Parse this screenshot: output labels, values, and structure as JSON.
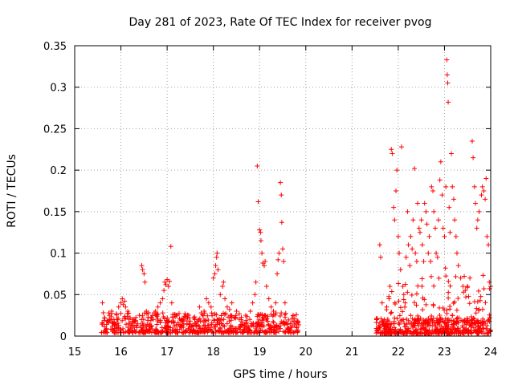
{
  "chart_data": {
    "type": "scatter",
    "title": "Day 281 of 2023, Rate Of TEC Index for receiver pvog",
    "xlabel": "GPS time / hours",
    "ylabel": "ROTI / TECUs",
    "xlim": [
      15,
      24
    ],
    "ylim": [
      0,
      0.35
    ],
    "xticks": [
      15,
      16,
      17,
      18,
      19,
      20,
      21,
      22,
      23,
      24
    ],
    "yticks": [
      0,
      0.05,
      0.1,
      0.15,
      0.2,
      0.25,
      0.3,
      0.35
    ],
    "xtick_labels": [
      "15",
      "16",
      "17",
      "18",
      "19",
      "20",
      "21",
      "22",
      "23",
      "24"
    ],
    "ytick_labels": [
      "0",
      "0.05",
      "0.1",
      "0.15",
      "0.2",
      "0.25",
      "0.3",
      "0.35"
    ],
    "grid": true,
    "marker": "+",
    "color": "#ff0000",
    "series": [
      {
        "name": "ROTI",
        "points": [
          [
            15.6,
            0.04
          ],
          [
            15.62,
            0.028
          ],
          [
            15.65,
            0.022
          ],
          [
            15.7,
            0.018
          ],
          [
            15.75,
            0.025
          ],
          [
            15.8,
            0.03
          ],
          [
            15.85,
            0.02
          ],
          [
            15.9,
            0.027
          ],
          [
            15.95,
            0.035
          ],
          [
            16.0,
            0.04
          ],
          [
            16.03,
            0.045
          ],
          [
            16.05,
            0.038
          ],
          [
            16.08,
            0.042
          ],
          [
            16.1,
            0.035
          ],
          [
            16.15,
            0.03
          ],
          [
            16.2,
            0.022
          ],
          [
            16.3,
            0.018
          ],
          [
            16.4,
            0.025
          ],
          [
            16.45,
            0.085
          ],
          [
            16.47,
            0.08
          ],
          [
            16.5,
            0.075
          ],
          [
            16.52,
            0.065
          ],
          [
            16.55,
            0.03
          ],
          [
            16.6,
            0.028
          ],
          [
            16.65,
            0.022
          ],
          [
            16.7,
            0.02
          ],
          [
            16.75,
            0.03
          ],
          [
            16.8,
            0.035
          ],
          [
            16.85,
            0.04
          ],
          [
            16.9,
            0.045
          ],
          [
            16.93,
            0.055
          ],
          [
            16.95,
            0.065
          ],
          [
            16.97,
            0.062
          ],
          [
            17.0,
            0.068
          ],
          [
            17.03,
            0.06
          ],
          [
            17.05,
            0.066
          ],
          [
            17.08,
            0.108
          ],
          [
            17.1,
            0.04
          ],
          [
            17.2,
            0.025
          ],
          [
            17.3,
            0.02
          ],
          [
            17.4,
            0.022
          ],
          [
            17.5,
            0.018
          ],
          [
            17.6,
            0.02
          ],
          [
            17.7,
            0.035
          ],
          [
            17.8,
            0.03
          ],
          [
            17.85,
            0.045
          ],
          [
            17.9,
            0.04
          ],
          [
            17.95,
            0.035
          ],
          [
            18.0,
            0.07
          ],
          [
            18.03,
            0.075
          ],
          [
            18.05,
            0.085
          ],
          [
            18.07,
            0.095
          ],
          [
            18.08,
            0.1
          ],
          [
            18.1,
            0.08
          ],
          [
            18.15,
            0.05
          ],
          [
            18.2,
            0.06
          ],
          [
            18.22,
            0.065
          ],
          [
            18.25,
            0.045
          ],
          [
            18.3,
            0.035
          ],
          [
            18.35,
            0.032
          ],
          [
            18.4,
            0.04
          ],
          [
            18.5,
            0.03
          ],
          [
            18.6,
            0.02
          ],
          [
            18.7,
            0.025
          ],
          [
            18.8,
            0.03
          ],
          [
            18.85,
            0.04
          ],
          [
            18.9,
            0.05
          ],
          [
            18.92,
            0.065
          ],
          [
            18.95,
            0.205
          ],
          [
            18.97,
            0.162
          ],
          [
            19.0,
            0.128
          ],
          [
            19.02,
            0.125
          ],
          [
            19.03,
            0.115
          ],
          [
            19.05,
            0.1
          ],
          [
            19.07,
            0.088
          ],
          [
            19.1,
            0.085
          ],
          [
            19.12,
            0.09
          ],
          [
            19.15,
            0.06
          ],
          [
            19.2,
            0.045
          ],
          [
            19.25,
            0.035
          ],
          [
            19.3,
            0.03
          ],
          [
            19.35,
            0.04
          ],
          [
            19.38,
            0.075
          ],
          [
            19.4,
            0.092
          ],
          [
            19.42,
            0.1
          ],
          [
            19.45,
            0.185
          ],
          [
            19.47,
            0.17
          ],
          [
            19.48,
            0.137
          ],
          [
            19.5,
            0.105
          ],
          [
            19.52,
            0.09
          ],
          [
            19.55,
            0.04
          ],
          [
            19.6,
            0.015
          ],
          [
            19.7,
            0.012
          ],
          [
            19.8,
            0.01
          ],
          [
            21.6,
            0.11
          ],
          [
            21.62,
            0.095
          ],
          [
            21.65,
            0.04
          ],
          [
            21.7,
            0.02
          ],
          [
            21.75,
            0.035
          ],
          [
            21.8,
            0.045
          ],
          [
            21.82,
            0.06
          ],
          [
            21.85,
            0.225
          ],
          [
            21.87,
            0.22
          ],
          [
            21.9,
            0.155
          ],
          [
            21.92,
            0.14
          ],
          [
            21.95,
            0.175
          ],
          [
            21.97,
            0.2
          ],
          [
            22.0,
            0.12
          ],
          [
            22.02,
            0.1
          ],
          [
            22.05,
            0.08
          ],
          [
            22.07,
            0.228
          ],
          [
            22.1,
            0.06
          ],
          [
            22.12,
            0.05
          ],
          [
            22.15,
            0.04
          ],
          [
            22.17,
            0.095
          ],
          [
            22.2,
            0.15
          ],
          [
            22.22,
            0.11
          ],
          [
            22.25,
            0.085
          ],
          [
            22.27,
            0.12
          ],
          [
            22.3,
            0.105
          ],
          [
            22.32,
            0.14
          ],
          [
            22.35,
            0.202
          ],
          [
            22.37,
            0.1
          ],
          [
            22.4,
            0.09
          ],
          [
            22.42,
            0.16
          ],
          [
            22.45,
            0.13
          ],
          [
            22.47,
            0.125
          ],
          [
            22.5,
            0.14
          ],
          [
            22.52,
            0.11
          ],
          [
            22.55,
            0.09
          ],
          [
            22.57,
            0.16
          ],
          [
            22.6,
            0.15
          ],
          [
            22.62,
            0.135
          ],
          [
            22.65,
            0.1
          ],
          [
            22.67,
            0.12
          ],
          [
            22.7,
            0.09
          ],
          [
            22.72,
            0.18
          ],
          [
            22.75,
            0.175
          ],
          [
            22.77,
            0.15
          ],
          [
            22.8,
            0.13
          ],
          [
            22.82,
            0.1
          ],
          [
            22.85,
            0.095
          ],
          [
            22.87,
            0.14
          ],
          [
            22.9,
            0.188
          ],
          [
            22.92,
            0.21
          ],
          [
            22.95,
            0.17
          ],
          [
            22.97,
            0.13
          ],
          [
            23.0,
            0.12
          ],
          [
            23.02,
            0.082
          ],
          [
            23.03,
            0.18
          ],
          [
            23.05,
            0.333
          ],
          [
            23.06,
            0.315
          ],
          [
            23.07,
            0.305
          ],
          [
            23.08,
            0.282
          ],
          [
            23.1,
            0.155
          ],
          [
            23.12,
            0.125
          ],
          [
            23.15,
            0.22
          ],
          [
            23.17,
            0.18
          ],
          [
            23.2,
            0.165
          ],
          [
            23.22,
            0.14
          ],
          [
            23.25,
            0.12
          ],
          [
            23.27,
            0.1
          ],
          [
            23.3,
            0.085
          ],
          [
            23.35,
            0.07
          ],
          [
            23.4,
            0.06
          ],
          [
            23.45,
            0.055
          ],
          [
            23.5,
            0.06
          ],
          [
            23.55,
            0.07
          ],
          [
            23.6,
            0.235
          ],
          [
            23.62,
            0.215
          ],
          [
            23.65,
            0.18
          ],
          [
            23.67,
            0.16
          ],
          [
            23.7,
            0.13
          ],
          [
            23.72,
            0.14
          ],
          [
            23.75,
            0.15
          ],
          [
            23.8,
            0.17
          ],
          [
            23.82,
            0.18
          ],
          [
            23.85,
            0.175
          ],
          [
            23.88,
            0.165
          ],
          [
            23.9,
            0.19
          ],
          [
            23.92,
            0.12
          ],
          [
            23.95,
            0.11
          ],
          [
            23.97,
            0.065
          ],
          [
            24.0,
            0.06
          ]
        ]
      }
    ],
    "band_clusters": [
      {
        "x_range": [
          15.58,
          19.85
        ],
        "y_range": [
          0.004,
          0.028
        ],
        "count": 650
      },
      {
        "x_range": [
          21.5,
          24.0
        ],
        "y_range": [
          0.003,
          0.022
        ],
        "count": 450
      },
      {
        "x_range": [
          21.7,
          24.0
        ],
        "y_range": [
          0.015,
          0.075
        ],
        "count": 120
      }
    ]
  }
}
